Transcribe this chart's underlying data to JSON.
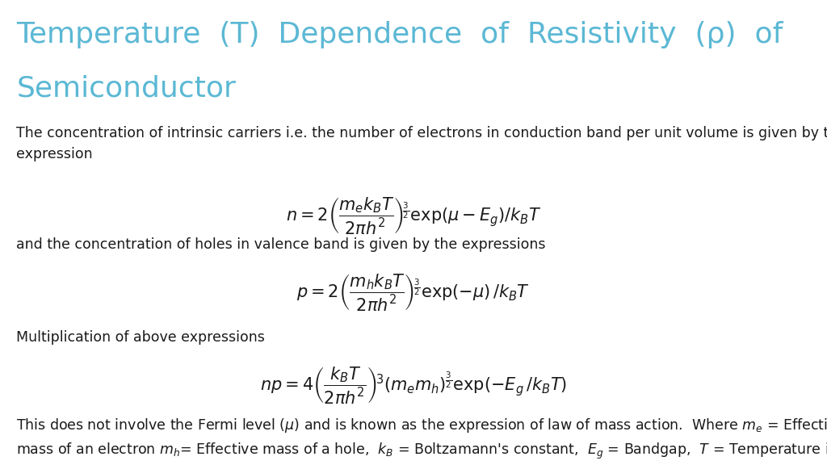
{
  "title_line1": "Temperature  (T)  Dependence  of  Resistivity  (ρ)  of",
  "title_line2": "Semiconductor",
  "title_color": "#5BB8D4",
  "title_fontsize": 26,
  "body_fontsize": 12.5,
  "math_fontsize": 15,
  "bg_color": "#FFFFFF",
  "text_color": "#1a1a1a",
  "para1": "The concentration of intrinsic carriers i.e. the number of electrons in conduction band per unit volume is given by the\nexpression",
  "eq1": "$n = 2\\left(\\dfrac{m_e k_B T}{2\\pi h^2}\\right)^{\\!\\frac{3}{2}} \\mathrm{exp}(\\mu - E_g)/k_B T$",
  "para2": "and the concentration of holes in valence band is given by the expressions",
  "eq2": "$p = 2\\left(\\dfrac{m_h k_B T}{2\\pi h^2}\\right)^{\\!\\frac{3}{2}} \\mathrm{exp}(-\\mu)\\, /k_B T$",
  "para3": "Multiplication of above expressions",
  "eq3": "$np = 4\\left(\\dfrac{k_B T}{2\\pi h^2}\\right)^{\\!3} (m_e m_h)^{\\frac{3}{2}} \\mathrm{exp}(-E_g\\, /k_B T)$",
  "para4": "This does not involve the Fermi level ($\\mu$) and is known as the expression of law of mass action.  Where $m_e$ = Effective\nmass of an electron $m_h$= Effective mass of a hole,  $k_B$ = Boltzamann's constant,  $E_g$ = Bandgap,  $T$ = Temperature in K"
}
